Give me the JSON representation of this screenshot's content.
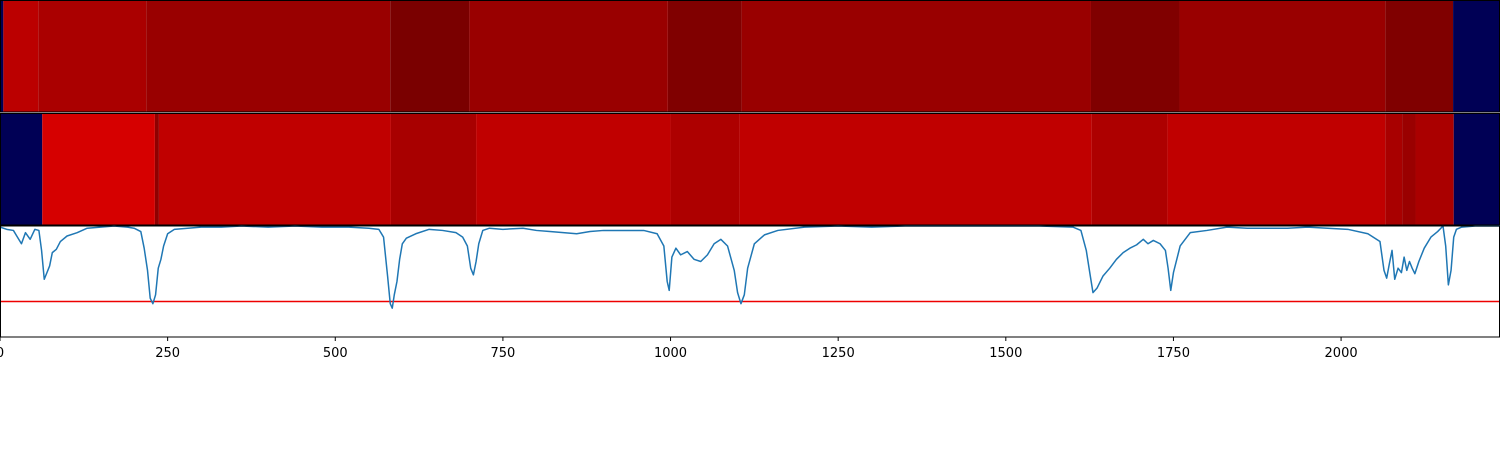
{
  "chart_data": [
    {
      "type": "heatmap",
      "colors": [
        "#000055",
        "#bb0000",
        "#990000",
        "#800000",
        "#7a0000",
        "#c00000",
        "#ad0000"
      ],
      "segments": [
        {
          "x0": -2,
          "x1": 5,
          "color": "#000055"
        },
        {
          "x0": 5,
          "x1": 57,
          "color": "#bb0000"
        },
        {
          "x0": 57,
          "x1": 218,
          "color": "#aa0000"
        },
        {
          "x0": 218,
          "x1": 582,
          "color": "#990000"
        },
        {
          "x0": 582,
          "x1": 700,
          "color": "#7a0000"
        },
        {
          "x0": 700,
          "x1": 996,
          "color": "#990000"
        },
        {
          "x0": 996,
          "x1": 1106,
          "color": "#800000"
        },
        {
          "x0": 1106,
          "x1": 1627,
          "color": "#990000"
        },
        {
          "x0": 1627,
          "x1": 1759,
          "color": "#800000"
        },
        {
          "x0": 1759,
          "x1": 2066,
          "color": "#990000"
        },
        {
          "x0": 2066,
          "x1": 2167,
          "color": "#800000"
        },
        {
          "x0": 2167,
          "x1": 2237,
          "color": "#000055"
        }
      ]
    },
    {
      "type": "heatmap",
      "segments": [
        {
          "x0": -2,
          "x1": 63,
          "color": "#000055"
        },
        {
          "x0": 63,
          "x1": 231,
          "color": "#d60000"
        },
        {
          "x0": 231,
          "x1": 237,
          "color": "#8f0000"
        },
        {
          "x0": 237,
          "x1": 583,
          "color": "#c00000"
        },
        {
          "x0": 583,
          "x1": 710,
          "color": "#a80000"
        },
        {
          "x0": 710,
          "x1": 1000,
          "color": "#c00000"
        },
        {
          "x0": 1000,
          "x1": 1103,
          "color": "#ad0000"
        },
        {
          "x0": 1103,
          "x1": 1628,
          "color": "#c00000"
        },
        {
          "x0": 1628,
          "x1": 1741,
          "color": "#ad0000"
        },
        {
          "x0": 1741,
          "x1": 2066,
          "color": "#c00000"
        },
        {
          "x0": 2066,
          "x1": 2091,
          "color": "#a80000"
        },
        {
          "x0": 2091,
          "x1": 2111,
          "color": "#9a0000"
        },
        {
          "x0": 2111,
          "x1": 2168,
          "color": "#aa0000"
        },
        {
          "x0": 2168,
          "x1": 2237,
          "color": "#000055"
        }
      ]
    },
    {
      "type": "line",
      "xlim": [
        0,
        2237
      ],
      "ylim": [
        0,
        1
      ],
      "xticks": [
        0,
        250,
        500,
        750,
        1000,
        1250,
        1500,
        1750,
        2000
      ],
      "xtick_labels": [
        "0",
        "250",
        "500",
        "750",
        "1000",
        "1250",
        "1500",
        "1750",
        "2000"
      ],
      "line_color": "#1f77b4",
      "threshold": {
        "y": 0.32,
        "color": "#ee0000"
      },
      "series": [
        {
          "x": [
            0,
            10,
            20,
            26,
            32,
            38,
            45,
            52,
            58,
            62,
            66,
            70,
            74,
            78,
            84,
            90,
            100,
            115,
            130,
            150,
            170,
            190,
            200,
            210,
            215,
            220,
            224,
            228,
            232,
            236,
            240,
            244,
            250,
            260,
            280,
            300,
            330,
            360,
            400,
            440,
            480,
            520,
            550,
            565,
            572,
            578,
            582,
            585,
            588,
            592,
            596,
            600,
            606,
            620,
            640,
            660,
            680,
            690,
            697,
            702,
            706,
            710,
            714,
            720,
            730,
            750,
            780,
            800,
            820,
            840,
            860,
            880,
            900,
            930,
            960,
            980,
            990,
            995,
            998,
            1002,
            1008,
            1015,
            1025,
            1035,
            1045,
            1055,
            1065,
            1075,
            1085,
            1095,
            1100,
            1105,
            1110,
            1115,
            1125,
            1140,
            1160,
            1200,
            1250,
            1300,
            1350,
            1400,
            1450,
            1500,
            1550,
            1600,
            1612,
            1620,
            1626,
            1630,
            1636,
            1645,
            1655,
            1665,
            1675,
            1685,
            1695,
            1705,
            1712,
            1720,
            1730,
            1738,
            1742,
            1746,
            1750,
            1760,
            1775,
            1800,
            1830,
            1860,
            1890,
            1920,
            1950,
            1980,
            2010,
            2040,
            2058,
            2064,
            2068,
            2072,
            2076,
            2080,
            2085,
            2090,
            2094,
            2098,
            2102,
            2106,
            2110,
            2116,
            2124,
            2134,
            2144,
            2152,
            2156,
            2160,
            2164,
            2168,
            2172,
            2180,
            2200,
            2237
          ],
          "y": [
            0.99,
            0.97,
            0.96,
            0.9,
            0.84,
            0.94,
            0.88,
            0.97,
            0.96,
            0.78,
            0.52,
            0.58,
            0.64,
            0.76,
            0.79,
            0.86,
            0.91,
            0.94,
            0.98,
            0.99,
            1.0,
            0.99,
            0.98,
            0.95,
            0.8,
            0.6,
            0.35,
            0.3,
            0.38,
            0.62,
            0.7,
            0.82,
            0.93,
            0.97,
            0.98,
            0.99,
            0.99,
            1.0,
            0.99,
            1.0,
            0.99,
            0.99,
            0.98,
            0.97,
            0.9,
            0.55,
            0.3,
            0.26,
            0.38,
            0.5,
            0.7,
            0.84,
            0.89,
            0.93,
            0.97,
            0.96,
            0.94,
            0.9,
            0.82,
            0.62,
            0.56,
            0.68,
            0.84,
            0.96,
            0.98,
            0.97,
            0.98,
            0.96,
            0.95,
            0.94,
            0.93,
            0.95,
            0.96,
            0.96,
            0.96,
            0.93,
            0.82,
            0.5,
            0.42,
            0.72,
            0.8,
            0.74,
            0.77,
            0.7,
            0.68,
            0.74,
            0.84,
            0.88,
            0.82,
            0.6,
            0.4,
            0.3,
            0.38,
            0.62,
            0.84,
            0.92,
            0.96,
            0.99,
            1.0,
            0.99,
            1.0,
            1.0,
            1.0,
            1.0,
            1.0,
            0.99,
            0.96,
            0.78,
            0.55,
            0.4,
            0.44,
            0.55,
            0.62,
            0.7,
            0.76,
            0.8,
            0.83,
            0.88,
            0.84,
            0.87,
            0.84,
            0.78,
            0.62,
            0.42,
            0.58,
            0.82,
            0.94,
            0.96,
            0.99,
            0.98,
            0.98,
            0.98,
            0.99,
            0.98,
            0.97,
            0.93,
            0.86,
            0.6,
            0.53,
            0.66,
            0.78,
            0.52,
            0.62,
            0.58,
            0.72,
            0.6,
            0.68,
            0.62,
            0.57,
            0.68,
            0.8,
            0.9,
            0.95,
            1.0,
            0.82,
            0.47,
            0.6,
            0.9,
            0.97,
            0.99,
            1.0,
            1.0
          ]
        }
      ]
    }
  ]
}
